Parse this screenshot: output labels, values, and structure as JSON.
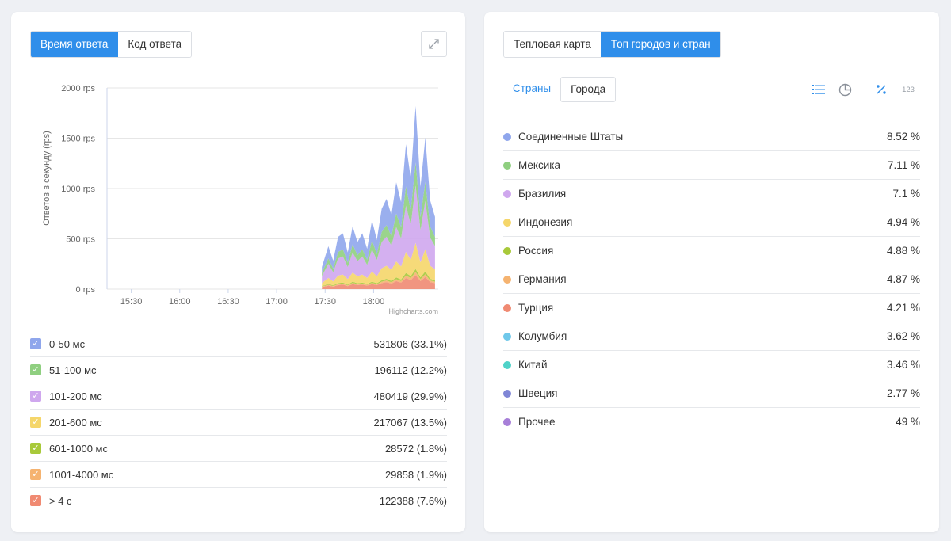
{
  "left": {
    "tabs": [
      {
        "label": "Время ответа",
        "active": true
      },
      {
        "label": "Код ответа",
        "active": false
      }
    ],
    "chart_credit": "Highcharts.com"
  },
  "chart_data": {
    "type": "area",
    "stacked": true,
    "ylabel": "Ответов в секунду (rps)",
    "ylim": [
      0,
      2000
    ],
    "yticks": [
      0,
      500,
      1000,
      1500,
      2000
    ],
    "ytick_labels": [
      "0 rps",
      "500 rps",
      "1000 rps",
      "1500 rps",
      "2000 rps"
    ],
    "xticks": [
      "15:30",
      "16:00",
      "16:30",
      "17:00",
      "17:30",
      "18:00"
    ],
    "xlim_minutes": [
      15.0,
      220.0
    ],
    "grid": true,
    "colors": [
      "#f08a72",
      "#f5b370",
      "#a8c93a",
      "#f5d66a",
      "#cfa7ee",
      "#8fcf80",
      "#8fa6ec"
    ],
    "x": [
      148,
      152,
      155,
      158,
      161,
      164,
      167,
      170,
      173,
      176,
      179,
      182,
      185,
      188,
      191,
      194,
      197,
      200,
      203,
      206,
      209,
      212,
      215,
      218
    ],
    "series": [
      {
        "name": "> 4 с",
        "values": [
          20,
          35,
          25,
          40,
          45,
          30,
          50,
          40,
          45,
          35,
          50,
          40,
          60,
          70,
          55,
          80,
          65,
          110,
          90,
          140,
          80,
          120,
          70,
          60
        ]
      },
      {
        "name": "1001-4000 мс",
        "values": [
          5,
          8,
          6,
          10,
          10,
          7,
          12,
          9,
          10,
          8,
          12,
          9,
          14,
          16,
          13,
          18,
          15,
          25,
          20,
          30,
          18,
          28,
          16,
          14
        ]
      },
      {
        "name": "601-1000 мс",
        "values": [
          5,
          8,
          6,
          10,
          10,
          7,
          12,
          9,
          10,
          8,
          12,
          9,
          14,
          16,
          13,
          18,
          15,
          25,
          20,
          30,
          18,
          28,
          16,
          14
        ]
      },
      {
        "name": "201-600 мс",
        "values": [
          30,
          60,
          40,
          75,
          80,
          55,
          90,
          70,
          80,
          60,
          100,
          70,
          120,
          130,
          110,
          160,
          130,
          210,
          160,
          260,
          150,
          220,
          130,
          110
        ]
      },
      {
        "name": "101-200 мс",
        "values": [
          70,
          140,
          90,
          170,
          180,
          120,
          200,
          150,
          180,
          130,
          220,
          160,
          260,
          290,
          240,
          340,
          280,
          460,
          350,
          570,
          320,
          480,
          280,
          230
        ]
      },
      {
        "name": "51-100 мс",
        "values": [
          30,
          55,
          35,
          65,
          70,
          45,
          80,
          60,
          70,
          50,
          90,
          60,
          100,
          115,
          95,
          135,
          110,
          190,
          140,
          230,
          130,
          190,
          110,
          90
        ]
      },
      {
        "name": "0-50 мс",
        "values": [
          60,
          120,
          80,
          150,
          160,
          100,
          180,
          130,
          160,
          110,
          200,
          140,
          230,
          260,
          210,
          310,
          250,
          420,
          320,
          560,
          300,
          440,
          260,
          200
        ]
      }
    ]
  },
  "legend": [
    {
      "label": "0-50 мс",
      "value": "531806 (33.1%)",
      "color": "#8fa6ec"
    },
    {
      "label": "51-100 мс",
      "value": "196112 (12.2%)",
      "color": "#8fcf80"
    },
    {
      "label": "101-200 мс",
      "value": "480419 (29.9%)",
      "color": "#cfa7ee"
    },
    {
      "label": "201-600 мс",
      "value": "217067 (13.5%)",
      "color": "#f5d66a"
    },
    {
      "label": "601-1000 мс",
      "value": "28572 (1.8%)",
      "color": "#a8c93a"
    },
    {
      "label": "1001-4000 мс",
      "value": "29858 (1.9%)",
      "color": "#f5b370"
    },
    {
      "label": "> 4 с",
      "value": "122388 (7.6%)",
      "color": "#f08a72"
    }
  ],
  "right": {
    "tabs": [
      {
        "label": "Тепловая карта",
        "active": false
      },
      {
        "label": "Топ городов и стран",
        "active": true
      }
    ],
    "subtabs": [
      {
        "label": "Страны",
        "active": true
      },
      {
        "label": "Города",
        "active": false
      }
    ],
    "number_mode_label": "123",
    "countries": [
      {
        "name": "Соединенные Штаты",
        "value": "8.52 %",
        "color": "#8fa6ec"
      },
      {
        "name": "Мексика",
        "value": "7.11 %",
        "color": "#8fcf80"
      },
      {
        "name": "Бразилия",
        "value": "7.1 %",
        "color": "#cfa7ee"
      },
      {
        "name": "Индонезия",
        "value": "4.94 %",
        "color": "#f5d66a"
      },
      {
        "name": "Россия",
        "value": "4.88 %",
        "color": "#a8c93a"
      },
      {
        "name": "Германия",
        "value": "4.87 %",
        "color": "#f5b370"
      },
      {
        "name": "Турция",
        "value": "4.21 %",
        "color": "#f08a72"
      },
      {
        "name": "Колумбия",
        "value": "3.62 %",
        "color": "#6fc8ea"
      },
      {
        "name": "Китай",
        "value": "3.46 %",
        "color": "#4fd2c8"
      },
      {
        "name": "Швеция",
        "value": "2.77 %",
        "color": "#7f86d6"
      },
      {
        "name": "Прочее",
        "value": "49 %",
        "color": "#a77fd8"
      }
    ]
  }
}
